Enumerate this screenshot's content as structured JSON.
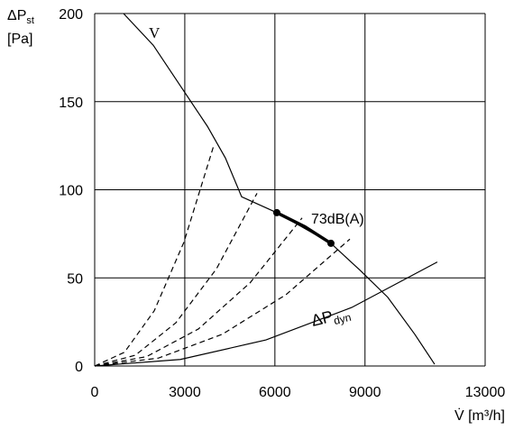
{
  "chart_data": {
    "type": "line",
    "y_label": "ΔP",
    "y_label_sub": "st",
    "y_label_unit": "[Pa]",
    "x_label": "V̇ [m³/h]",
    "xlim": [
      0,
      13000
    ],
    "xticks": [
      0,
      3000,
      6000,
      9000,
      13000
    ],
    "ylim": [
      0,
      200
    ],
    "yticks": [
      0,
      50,
      100,
      150,
      200
    ],
    "grid": true,
    "series": [
      {
        "name": "V",
        "color": "#000000",
        "style": "solid",
        "x": [
          961,
          1951,
          2852,
          3753,
          4353,
          4893,
          6064,
          7866,
          8856,
          9757,
          10657,
          11318
        ],
        "values": [
          200,
          182,
          159,
          136,
          118,
          96,
          87,
          69.6,
          54,
          39,
          18,
          1
        ]
      },
      {
        "name": "73dB(A)",
        "color": "#000000",
        "style": "thick",
        "x": [
          6064,
          7000,
          7866
        ],
        "values": [
          87,
          79,
          69.6
        ]
      },
      {
        "color": "#000000",
        "style": "dashed",
        "x": [
          0,
          991,
          1982,
          2972,
          3963
        ],
        "values": [
          0,
          7.8,
          31.3,
          70.3,
          125
        ]
      },
      {
        "color": "#000000",
        "style": "dashed",
        "x": [
          0,
          1351,
          2702,
          4053,
          5404
        ],
        "values": [
          0,
          6.1,
          24.5,
          55.1,
          98
        ]
      },
      {
        "color": "#000000",
        "style": "dashed",
        "x": [
          0,
          1726,
          3453,
          5179,
          6905
        ],
        "values": [
          0,
          5.3,
          21,
          47.3,
          84
        ]
      },
      {
        "color": "#000000",
        "style": "dashed",
        "x": [
          0,
          2124,
          4248,
          6372,
          8496
        ],
        "values": [
          0,
          4.5,
          18,
          40.5,
          72
        ]
      },
      {
        "name": "ΔP",
        "name_sub": "dyn",
        "color": "#000000",
        "style": "solid",
        "x": [
          0,
          2852,
          5704,
          8556,
          11408
        ],
        "values": [
          0,
          3.7,
          14.8,
          33.2,
          59
        ]
      }
    ]
  }
}
